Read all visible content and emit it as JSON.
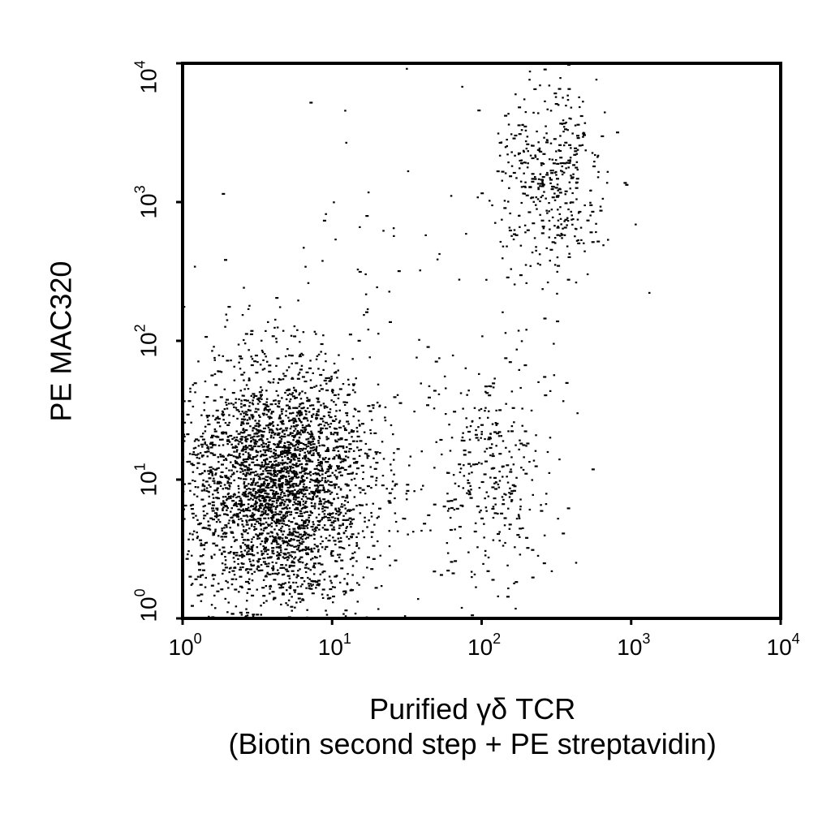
{
  "chart_data": {
    "type": "scatter",
    "title": "",
    "xlabel_line1": "Purified γδ TCR",
    "xlabel_line2": "(Biotin second step + PE streptavidin)",
    "ylabel": "PE MAC320",
    "xscale": "log",
    "yscale": "log",
    "xlim": [
      1,
      10000
    ],
    "ylim": [
      1,
      10000
    ],
    "x_ticks": [
      {
        "base": "10",
        "exp": "0"
      },
      {
        "base": "10",
        "exp": "1"
      },
      {
        "base": "10",
        "exp": "2"
      },
      {
        "base": "10",
        "exp": "3"
      },
      {
        "base": "10",
        "exp": "4"
      }
    ],
    "y_ticks": [
      {
        "base": "10",
        "exp": "0"
      },
      {
        "base": "10",
        "exp": "1"
      },
      {
        "base": "10",
        "exp": "2"
      },
      {
        "base": "10",
        "exp": "3"
      },
      {
        "base": "10",
        "exp": "4"
      }
    ],
    "grid": false,
    "legend": "none",
    "point_color": "#000000",
    "populations": [
      {
        "name": "",
        "count": 3200,
        "center_x": 4.5,
        "center_y": 9,
        "spread_log10_x": 0.32,
        "spread_log10_y": 0.45
      },
      {
        "name": "",
        "count": 420,
        "center_x": 300,
        "center_y": 1500,
        "spread_log10_x": 0.18,
        "spread_log10_y": 0.38
      },
      {
        "name": "",
        "count": 330,
        "center_x": 120,
        "center_y": 10,
        "spread_log10_x": 0.2,
        "spread_log10_y": 0.45
      },
      {
        "name": "",
        "count": 70,
        "center_x": 40,
        "center_y": 200,
        "spread_log10_x": 0.8,
        "spread_log10_y": 0.9
      }
    ]
  }
}
